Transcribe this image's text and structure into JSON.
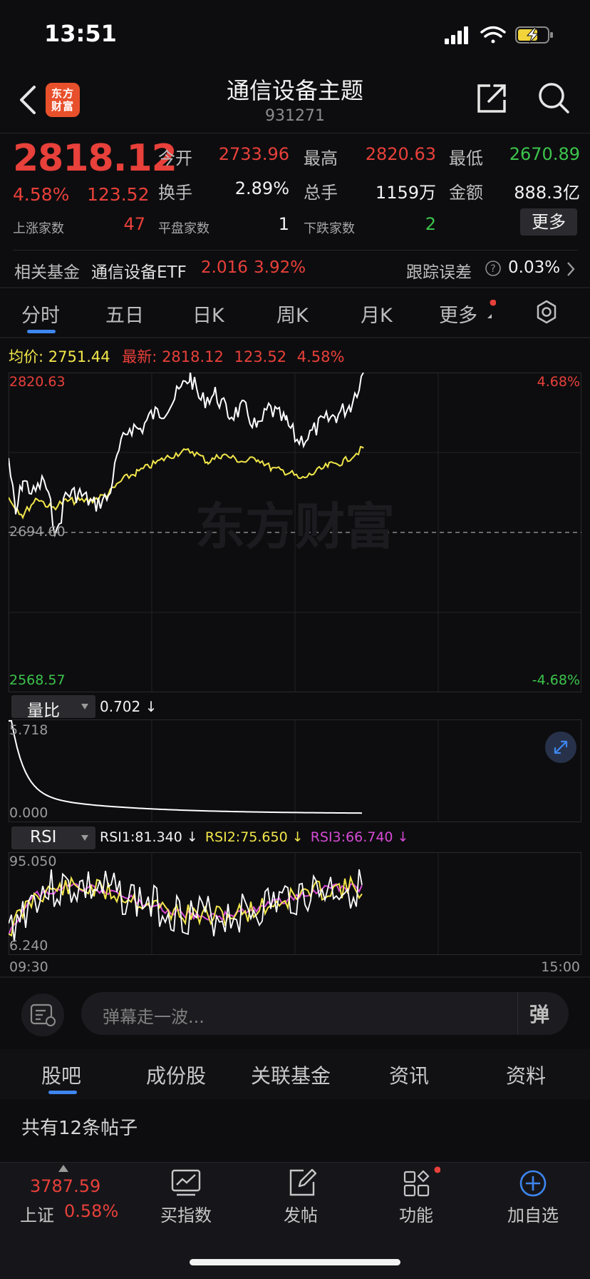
{
  "status_bar": {
    "time": "13:51"
  },
  "header": {
    "title": "通信设备主题",
    "code": "931271",
    "logo_text": "东方\n财富"
  },
  "quote": {
    "price": "2818.12",
    "change_pct": "4.58%",
    "change_abs": "123.52",
    "open_label": "今开",
    "open": "2733.96",
    "high_label": "最高",
    "high": "2820.63",
    "low_label": "最低",
    "low": "2670.89",
    "turnover_label": "换手",
    "turnover": "2.89%",
    "volume_label": "总手",
    "volume": "1159万",
    "amount_label": "金额",
    "amount": "888.3亿",
    "up_label": "上涨家数",
    "up_count": "47",
    "flat_label": "平盘家数",
    "flat_count": "1",
    "down_label": "下跌家数",
    "down_count": "2",
    "more_label": "更多"
  },
  "fund": {
    "label": "相关基金",
    "name": "通信设备ETF",
    "price": "2.016",
    "pct": "3.92%",
    "tracking_label": "跟踪误差",
    "tracking_value": "0.03%"
  },
  "tabs": [
    {
      "label": "分时"
    },
    {
      "label": "五日"
    },
    {
      "label": "日K"
    },
    {
      "label": "周K"
    },
    {
      "label": "月K"
    },
    {
      "label": "更多"
    }
  ],
  "legend": {
    "avg_label": "均价:",
    "avg_value": "2751.44",
    "latest_label": "最新:",
    "latest_value": "2818.12",
    "latest_change": "123.52",
    "latest_pct": "4.58%"
  },
  "price_chart": {
    "y_top": "2820.63",
    "y_mid": "2694.60",
    "y_bottom": "2568.57",
    "pct_top": "4.68%",
    "pct_bottom": "-4.68%",
    "watermark": "东方财富"
  },
  "volume_ratio": {
    "selector": "量比",
    "value": "0.702 ↓",
    "y_top": "5.718",
    "y_bottom": "0.000"
  },
  "rsi": {
    "selector": "RSI",
    "rsi1": "RSI1:81.340 ↓",
    "rsi2": "RSI2:75.650 ↓",
    "rsi3": "RSI3:66.740 ↓",
    "y_top": "95.050",
    "y_bottom": "6.240"
  },
  "time_axis": {
    "start": "09:30",
    "end": "15:00"
  },
  "danmaku": {
    "placeholder": "弹幕走一波...",
    "send_label": "弹"
  },
  "sub_tabs": [
    {
      "label": "股吧"
    },
    {
      "label": "成份股"
    },
    {
      "label": "关联基金"
    },
    {
      "label": "资讯"
    },
    {
      "label": "资料"
    }
  ],
  "posts_count": "共有12条帖子",
  "bottom_nav": {
    "index_value": "3787.59",
    "index_name": "上证",
    "index_pct": "0.58%",
    "items": [
      {
        "label": "买指数"
      },
      {
        "label": "发帖"
      },
      {
        "label": "功能"
      },
      {
        "label": "加自选"
      }
    ]
  },
  "colors": {
    "up": "#e8403a",
    "down": "#3cc44c",
    "accent": "#3e86f0",
    "avg_line": "#f2e64a",
    "rsi3": "#d64ad6"
  }
}
